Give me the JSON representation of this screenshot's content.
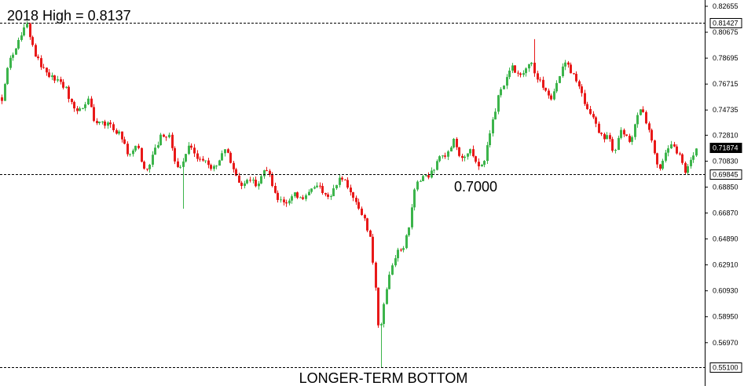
{
  "chart_data": {
    "type": "candlestick",
    "title": "",
    "xlabel": "",
    "ylabel": "",
    "ylim": [
      0.551,
      0.828
    ],
    "grid": false,
    "legend": "none",
    "colors": {
      "up": "#3cb44b",
      "down": "#e81919",
      "level_line": "#000000",
      "axis": "#000000"
    },
    "y_ticks": [
      "0.82655",
      "0.80675",
      "0.78695",
      "0.76715",
      "0.74735",
      "0.72810",
      "0.70830",
      "0.68850",
      "0.66870",
      "0.64890",
      "0.62910",
      "0.60930",
      "0.58950",
      "0.56970"
    ],
    "highlighted_levels": [
      {
        "value": 0.81427,
        "label": "0.81427",
        "style": "dashed",
        "box": "white"
      },
      {
        "value": 0.71874,
        "label": "0.71874",
        "style": "none",
        "box": "black"
      },
      {
        "value": 0.69845,
        "label": "0.69845",
        "style": "dashed",
        "box": "white"
      },
      {
        "value": 0.551,
        "label": "0.55100",
        "style": "dashed",
        "box": "white"
      }
    ],
    "annotations": [
      {
        "text": "2018 High = 0.8137",
        "anchor": "top-left"
      },
      {
        "text": "0.7000",
        "anchor": "center-support"
      },
      {
        "text": "LONGER-TERM BOTTOM",
        "anchor": "bottom-center"
      }
    ],
    "price_path": [
      [
        0,
        0.757
      ],
      [
        4,
        0.751
      ],
      [
        8,
        0.765
      ],
      [
        13,
        0.779
      ],
      [
        18,
        0.79
      ],
      [
        22,
        0.793
      ],
      [
        26,
        0.799
      ],
      [
        30,
        0.805
      ],
      [
        34,
        0.811
      ],
      [
        37,
        0.8137
      ],
      [
        41,
        0.804
      ],
      [
        46,
        0.792
      ],
      [
        52,
        0.785
      ],
      [
        58,
        0.779
      ],
      [
        64,
        0.775
      ],
      [
        70,
        0.772
      ],
      [
        76,
        0.77
      ],
      [
        82,
        0.768
      ],
      [
        88,
        0.762
      ],
      [
        94,
        0.753
      ],
      [
        100,
        0.748
      ],
      [
        106,
        0.749
      ],
      [
        112,
        0.753
      ],
      [
        117,
        0.757
      ],
      [
        121,
        0.742
      ],
      [
        126,
        0.738
      ],
      [
        132,
        0.739
      ],
      [
        138,
        0.737
      ],
      [
        144,
        0.735
      ],
      [
        150,
        0.731
      ],
      [
        156,
        0.728
      ],
      [
        162,
        0.722
      ],
      [
        166,
        0.713
      ],
      [
        170,
        0.715
      ],
      [
        175,
        0.722
      ],
      [
        180,
        0.716
      ],
      [
        184,
        0.708
      ],
      [
        188,
        0.703
      ],
      [
        193,
        0.705
      ],
      [
        198,
        0.714
      ],
      [
        203,
        0.72
      ],
      [
        208,
        0.728
      ],
      [
        213,
        0.726
      ],
      [
        218,
        0.731
      ],
      [
        222,
        0.718
      ],
      [
        226,
        0.707
      ],
      [
        230,
        0.701
      ],
      [
        234,
        0.704
      ],
      [
        238,
        0.713
      ],
      [
        243,
        0.721
      ],
      [
        248,
        0.717
      ],
      [
        253,
        0.712
      ],
      [
        258,
        0.709
      ],
      [
        263,
        0.707
      ],
      [
        268,
        0.706
      ],
      [
        273,
        0.704
      ],
      [
        278,
        0.704
      ],
      [
        283,
        0.711
      ],
      [
        288,
        0.715
      ],
      [
        292,
        0.717
      ],
      [
        296,
        0.709
      ],
      [
        300,
        0.703
      ],
      [
        305,
        0.697
      ],
      [
        310,
        0.69
      ],
      [
        315,
        0.689
      ],
      [
        320,
        0.694
      ],
      [
        325,
        0.693
      ],
      [
        330,
        0.69
      ],
      [
        335,
        0.696
      ],
      [
        340,
        0.701
      ],
      [
        345,
        0.699
      ],
      [
        350,
        0.69
      ],
      [
        355,
        0.682
      ],
      [
        360,
        0.677
      ],
      [
        365,
        0.679
      ],
      [
        370,
        0.677
      ],
      [
        375,
        0.684
      ],
      [
        380,
        0.683
      ],
      [
        385,
        0.679
      ],
      [
        390,
        0.681
      ],
      [
        395,
        0.686
      ],
      [
        400,
        0.687
      ],
      [
        405,
        0.69
      ],
      [
        410,
        0.689
      ],
      [
        415,
        0.684
      ],
      [
        420,
        0.682
      ],
      [
        425,
        0.684
      ],
      [
        430,
        0.688
      ],
      [
        435,
        0.694
      ],
      [
        440,
        0.697
      ],
      [
        445,
        0.691
      ],
      [
        450,
        0.684
      ],
      [
        455,
        0.676
      ],
      [
        460,
        0.672
      ],
      [
        465,
        0.666
      ],
      [
        470,
        0.659
      ],
      [
        475,
        0.647
      ],
      [
        478,
        0.631
      ],
      [
        481,
        0.614
      ],
      [
        484,
        0.592
      ],
      [
        486,
        0.574
      ],
      [
        488,
        0.584
      ],
      [
        491,
        0.599
      ],
      [
        494,
        0.604
      ],
      [
        497,
        0.616
      ],
      [
        500,
        0.627
      ],
      [
        504,
        0.633
      ],
      [
        508,
        0.638
      ],
      [
        512,
        0.64
      ],
      [
        516,
        0.643
      ],
      [
        520,
        0.649
      ],
      [
        524,
        0.66
      ],
      [
        528,
        0.676
      ],
      [
        532,
        0.69
      ],
      [
        537,
        0.694
      ],
      [
        542,
        0.697
      ],
      [
        547,
        0.695
      ],
      [
        552,
        0.7
      ],
      [
        556,
        0.704
      ],
      [
        560,
        0.707
      ],
      [
        565,
        0.712
      ],
      [
        570,
        0.713
      ],
      [
        575,
        0.716
      ],
      [
        580,
        0.726
      ],
      [
        584,
        0.721
      ],
      [
        588,
        0.712
      ],
      [
        592,
        0.708
      ],
      [
        596,
        0.712
      ],
      [
        600,
        0.717
      ],
      [
        605,
        0.713
      ],
      [
        610,
        0.707
      ],
      [
        614,
        0.701
      ],
      [
        618,
        0.707
      ],
      [
        622,
        0.715
      ],
      [
        626,
        0.728
      ],
      [
        630,
        0.739
      ],
      [
        634,
        0.748
      ],
      [
        638,
        0.758
      ],
      [
        642,
        0.764
      ],
      [
        646,
        0.768
      ],
      [
        650,
        0.773
      ],
      [
        655,
        0.78
      ],
      [
        660,
        0.776
      ],
      [
        665,
        0.772
      ],
      [
        670,
        0.775
      ],
      [
        675,
        0.78
      ],
      [
        680,
        0.784
      ],
      [
        684,
        0.772
      ],
      [
        688,
        0.77
      ],
      [
        692,
        0.768
      ],
      [
        696,
        0.763
      ],
      [
        700,
        0.76
      ],
      [
        704,
        0.756
      ],
      [
        708,
        0.762
      ],
      [
        712,
        0.769
      ],
      [
        716,
        0.775
      ],
      [
        720,
        0.78
      ],
      [
        724,
        0.783
      ],
      [
        728,
        0.779
      ],
      [
        732,
        0.774
      ],
      [
        736,
        0.771
      ],
      [
        740,
        0.768
      ],
      [
        744,
        0.76
      ],
      [
        748,
        0.752
      ],
      [
        752,
        0.745
      ],
      [
        756,
        0.742
      ],
      [
        760,
        0.739
      ],
      [
        764,
        0.733
      ],
      [
        768,
        0.728
      ],
      [
        772,
        0.727
      ],
      [
        776,
        0.729
      ],
      [
        780,
        0.723
      ],
      [
        784,
        0.712
      ],
      [
        788,
        0.719
      ],
      [
        792,
        0.735
      ],
      [
        796,
        0.731
      ],
      [
        800,
        0.728
      ],
      [
        804,
        0.722
      ],
      [
        808,
        0.727
      ],
      [
        812,
        0.738
      ],
      [
        816,
        0.744
      ],
      [
        820,
        0.748
      ],
      [
        824,
        0.742
      ],
      [
        828,
        0.733
      ],
      [
        832,
        0.726
      ],
      [
        836,
        0.716
      ],
      [
        840,
        0.704
      ],
      [
        844,
        0.703
      ],
      [
        848,
        0.712
      ],
      [
        852,
        0.718
      ],
      [
        856,
        0.722
      ],
      [
        860,
        0.72
      ],
      [
        864,
        0.717
      ],
      [
        868,
        0.713
      ],
      [
        872,
        0.705
      ],
      [
        876,
        0.698
      ],
      [
        880,
        0.704
      ],
      [
        884,
        0.712
      ],
      [
        888,
        0.717
      ]
    ],
    "extreme_wicks": [
      {
        "x": 37,
        "high": 0.8137
      },
      {
        "x": 234,
        "low": 0.672
      },
      {
        "x": 486,
        "low": 0.551
      },
      {
        "x": 680,
        "high": 0.8015
      },
      {
        "x": 888,
        "high": 0.7255
      }
    ]
  }
}
